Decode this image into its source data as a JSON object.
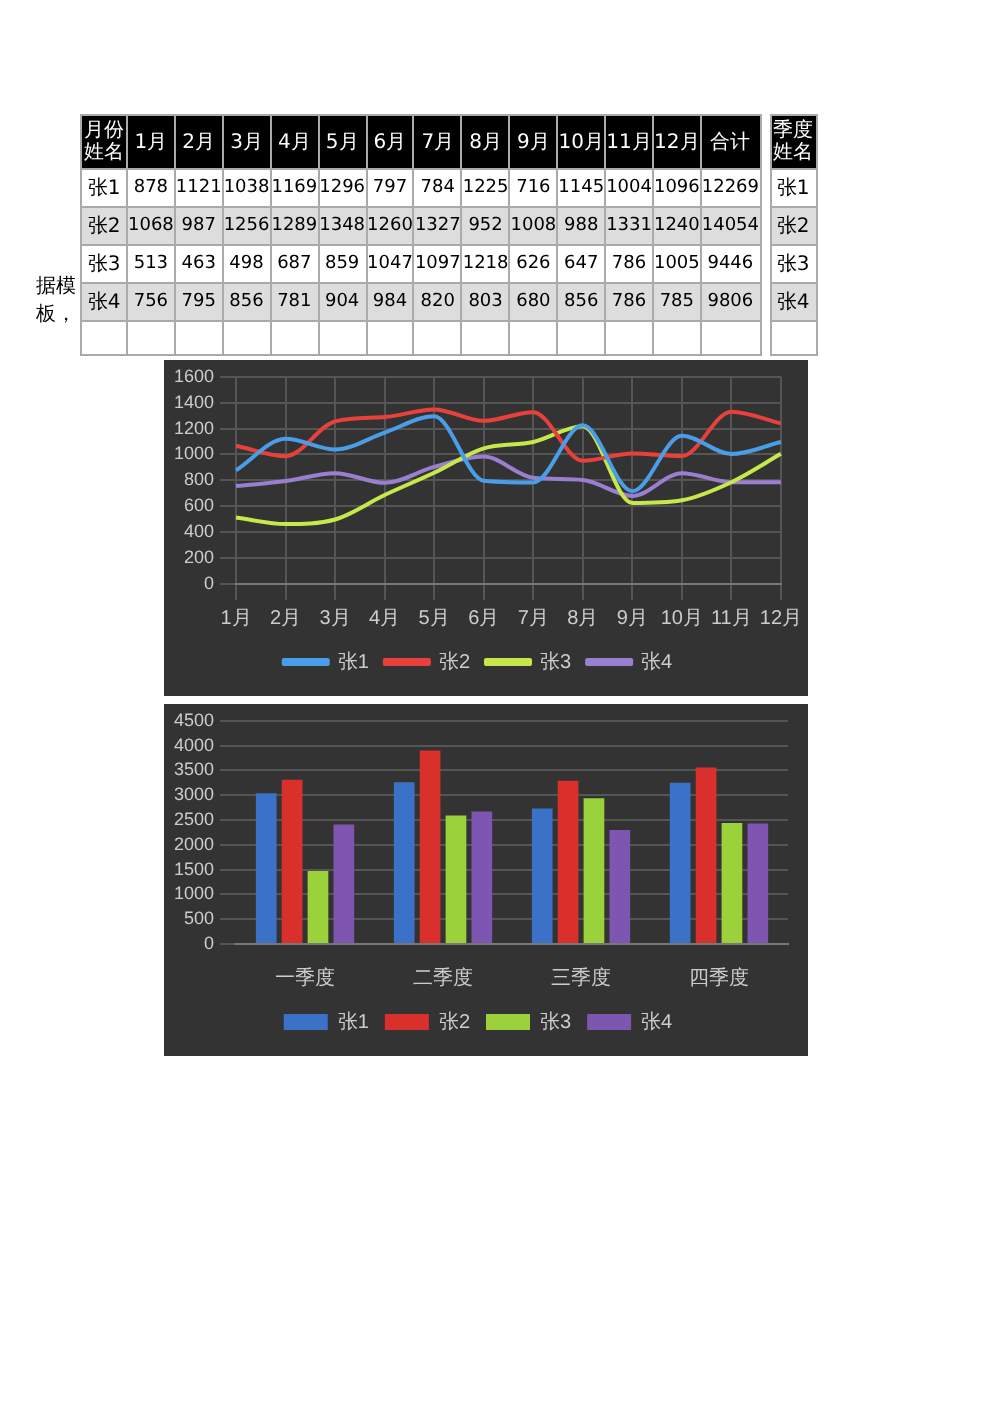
{
  "chart_data": [
    {
      "type": "heatmap",
      "categories": [
        "1月",
        "2月",
        "3月",
        "4月",
        "5月",
        "6月",
        "7月",
        "8月",
        "9月",
        "10月",
        "11月",
        "12月",
        "合计"
      ],
      "y_categories": [
        "张1",
        "张2",
        "张3",
        "张4"
      ],
      "cells": [
        [
          878,
          1121,
          1038,
          1169,
          1296,
          797,
          784,
          1225,
          716,
          1145,
          1004,
          1096,
          12269
        ],
        [
          1068,
          987,
          1256,
          1289,
          1348,
          1260,
          1327,
          952,
          1008,
          988,
          1331,
          1240,
          14054
        ],
        [
          513,
          463,
          498,
          687,
          859,
          1047,
          1097,
          1218,
          626,
          647,
          786,
          1005,
          9446
        ],
        [
          756,
          795,
          856,
          781,
          904,
          984,
          820,
          803,
          680,
          856,
          786,
          785,
          9806
        ]
      ],
      "data_labels": true,
      "annotations": [
        "月份姓名",
        "据模板，"
      ]
    },
    {
      "type": "other",
      "annotations": [
        "季度姓名",
        "张1",
        "张2",
        "张3",
        "张4"
      ]
    },
    {
      "type": "line",
      "categories": [
        "1月",
        "2月",
        "3月",
        "4月",
        "5月",
        "6月",
        "7月",
        "8月",
        "9月",
        "10月",
        "11月",
        "12月"
      ],
      "series": [
        {
          "name": "张1",
          "color": "#4a9ee8",
          "values": [
            878,
            1121,
            1038,
            1169,
            1296,
            797,
            784,
            1225,
            716,
            1145,
            1004,
            1096
          ]
        },
        {
          "name": "张2",
          "color": "#e8413c",
          "values": [
            1068,
            987,
            1256,
            1289,
            1348,
            1260,
            1327,
            952,
            1008,
            988,
            1331,
            1240
          ]
        },
        {
          "name": "张3",
          "color": "#c6e84a",
          "values": [
            513,
            463,
            498,
            687,
            859,
            1047,
            1097,
            1218,
            626,
            647,
            786,
            1005
          ]
        },
        {
          "name": "张4",
          "color": "#9a7fd0",
          "values": [
            756,
            795,
            856,
            781,
            904,
            984,
            820,
            803,
            680,
            856,
            786,
            785
          ]
        }
      ],
      "ylim": [
        0,
        1600
      ],
      "yticks": [
        0,
        200,
        400,
        600,
        800,
        1000,
        1200,
        1400,
        1600
      ],
      "grid": true,
      "legend": "bottom",
      "marker": "none",
      "line_style": "solid"
    },
    {
      "type": "bar",
      "categories": [
        "一季度",
        "二季度",
        "三季度",
        "四季度"
      ],
      "series": [
        {
          "name": "张1",
          "color": "#3b72c8",
          "values": [
            3040,
            3260,
            2730,
            3250
          ]
        },
        {
          "name": "张2",
          "color": "#d9302c",
          "values": [
            3310,
            3900,
            3290,
            3560
          ]
        },
        {
          "name": "张3",
          "color": "#9bd13b",
          "values": [
            1470,
            2590,
            2940,
            2440
          ]
        },
        {
          "name": "张4",
          "color": "#7e55b0",
          "values": [
            2410,
            2670,
            2300,
            2430
          ]
        }
      ],
      "ylim": [
        0,
        4500
      ],
      "yticks": [
        0,
        500,
        1000,
        1500,
        2000,
        2500,
        3000,
        3500,
        4000,
        4500
      ],
      "grid": "y",
      "legend": "bottom"
    }
  ]
}
